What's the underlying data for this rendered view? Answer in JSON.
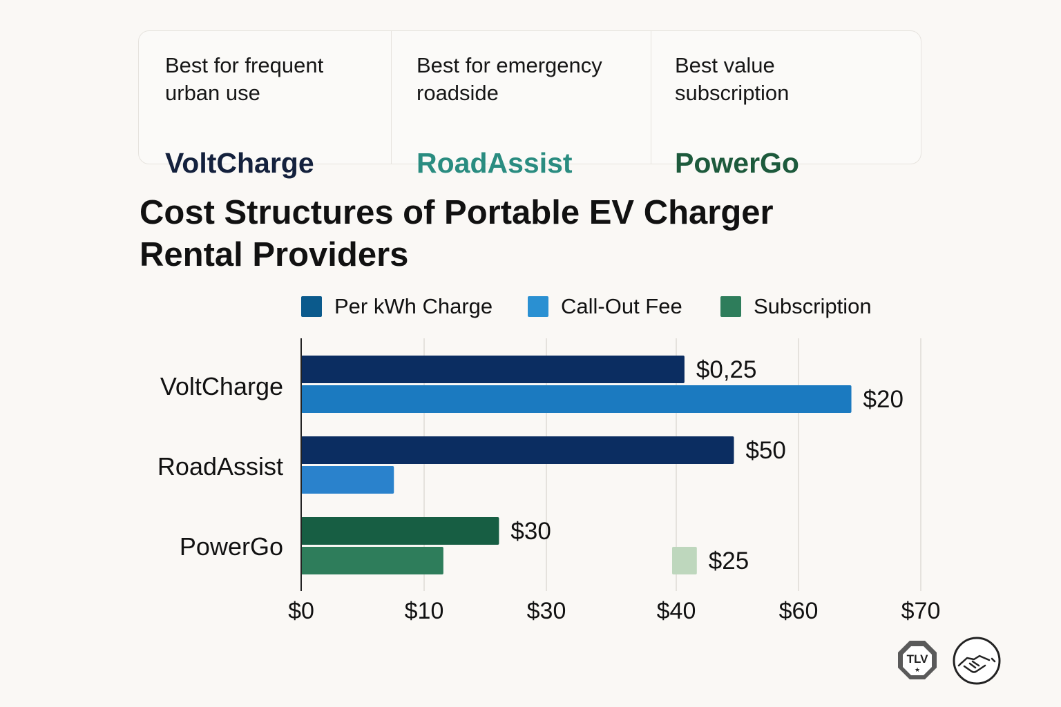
{
  "cards": [
    {
      "desc_line1": "Best for frequent",
      "desc_line2": "urban use",
      "brand": "VoltCharge",
      "brand_color": "#14213d"
    },
    {
      "desc_line1": "Best for emergency",
      "desc_line2": "roadside",
      "brand": "RoadAssist",
      "brand_color": "#2a8c80"
    },
    {
      "desc_line1": "Best value",
      "desc_line2": "subscription",
      "brand": "PowerGo",
      "brand_color": "#1d5a3c"
    }
  ],
  "chart_data": {
    "type": "bar",
    "orientation": "horizontal",
    "title_line1": "Cost Structures of Portable EV Charger",
    "title_line2": "Rental Providers",
    "legend": [
      {
        "label": "Per kWh Charge",
        "color": "#0b5a8c"
      },
      {
        "label": "Call-Out Fee",
        "color": "#2a90d2"
      },
      {
        "label": "Subscription",
        "color": "#2e7d5b"
      }
    ],
    "categories": [
      "VoltCharge",
      "RoadAssist",
      "PowerGo"
    ],
    "x_ticks": [
      "$0",
      "$10",
      "$30",
      "$40",
      "$60",
      "$70"
    ],
    "x_tick_scale": [
      0,
      10,
      30,
      40,
      60,
      70
    ],
    "grid": true,
    "bars": [
      {
        "category": "VoltCharge",
        "value": 31,
        "label": "$0,25",
        "color": "#0b2d61"
      },
      {
        "category": "VoltCharge",
        "value": 44.5,
        "label": "$20",
        "color": "#1b7ac0"
      },
      {
        "category": "RoadAssist",
        "value": 35,
        "label": "$50",
        "color": "#0b2d61"
      },
      {
        "category": "RoadAssist",
        "value": 7.5,
        "label": "",
        "color": "#2a82cc"
      },
      {
        "category": "PowerGo",
        "value": 16,
        "label": "$30",
        "color": "#175e43"
      },
      {
        "category": "PowerGo",
        "value": 11.5,
        "label": "",
        "color": "#2e7d5b"
      },
      {
        "category": "PowerGo",
        "start": 30,
        "value": 32,
        "label": "$25",
        "color": "#bed7bd"
      }
    ]
  },
  "badges": {
    "badge1_text": "TLV",
    "badge1_icon": "octagon-seal-icon",
    "badge2_icon": "handshake-icon"
  }
}
